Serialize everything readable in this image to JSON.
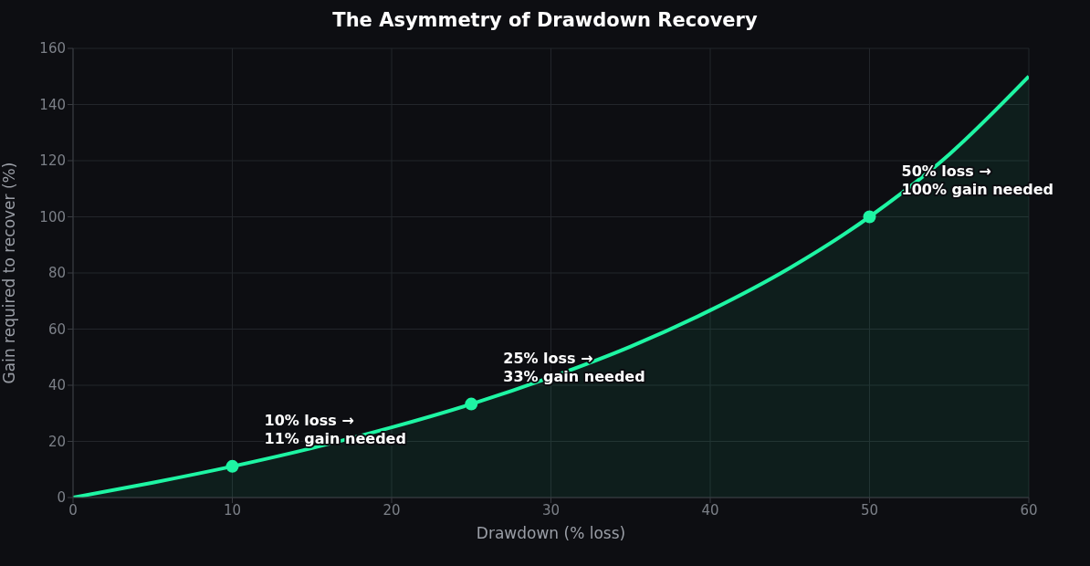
{
  "chart_data": {
    "type": "area",
    "title": "The Asymmetry of Drawdown Recovery",
    "xlabel": "Drawdown (% loss)",
    "ylabel": "Gain required to recover (%)",
    "x": [
      0,
      5,
      10,
      15,
      20,
      25,
      30,
      35,
      40,
      45,
      50,
      55,
      60
    ],
    "series": [
      {
        "color": "#1ef5a3",
        "values": [
          0,
          5.3,
          11.1,
          17.6,
          25,
          33.3,
          42.9,
          53.8,
          66.7,
          81.8,
          100,
          122.2,
          150
        ]
      },
      {
        "type": "scatter",
        "color": "#1ef5a3",
        "x": [
          10,
          25,
          50
        ],
        "values": [
          11.1,
          33.3,
          100
        ]
      }
    ],
    "xlim": [
      0,
      60
    ],
    "xticks": [
      0,
      10,
      20,
      30,
      40,
      50,
      60
    ],
    "ylim": [
      0,
      160
    ],
    "yticks": [
      0,
      20,
      40,
      60,
      80,
      100,
      120,
      140,
      160
    ],
    "grid": true,
    "annotations": [
      {
        "text": "10% loss →\n11% gain needed",
        "x": 10,
        "y": 11.1
      },
      {
        "text": "25% loss →\n33% gain needed",
        "x": 25,
        "y": 33.3
      },
      {
        "text": "50% loss →\n100% gain needed",
        "x": 50,
        "y": 100
      }
    ]
  }
}
